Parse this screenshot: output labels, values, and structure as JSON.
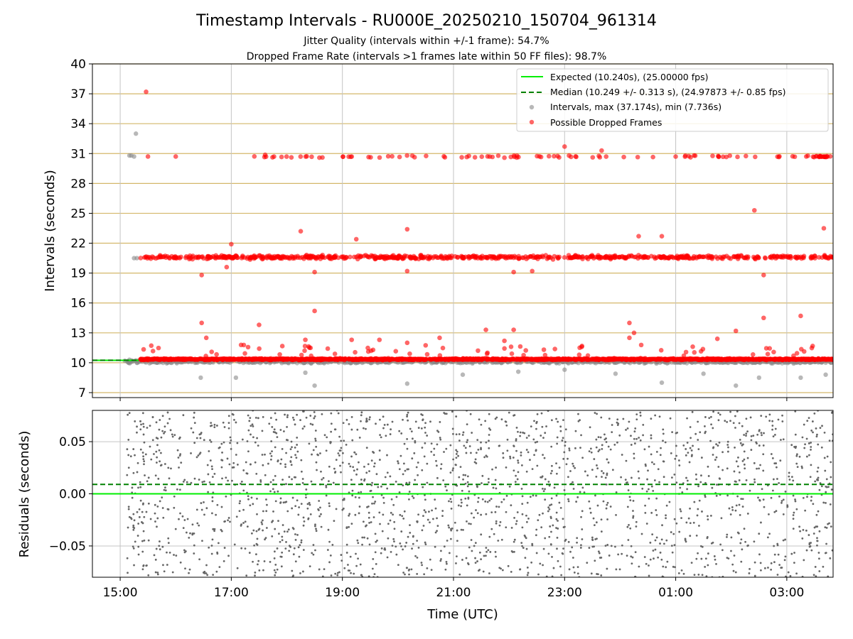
{
  "chart_data": [
    {
      "type": "scatter",
      "title": "Timestamp Intervals - RU000E_20250210_150704_961314",
      "subtitle_1": "Jitter Quality (intervals within +/-1 frame): 54.7%",
      "subtitle_2": "Dropped Frame Rate (intervals >1 frames late within 50 FF files): 98.7%",
      "ylabel": "Intervals (seconds)",
      "xlim": [
        "14:30",
        "03:50"
      ],
      "ylim": [
        6.5,
        40
      ],
      "yticks": [
        "7",
        "10",
        "13",
        "16",
        "19",
        "22",
        "25",
        "28",
        "31",
        "34",
        "37",
        "40"
      ],
      "grid": "horizontal golden lines at every y tick, vertical grey lines at every x tick",
      "legend_position": "top-right",
      "series": [
        {
          "name": "Expected (10.240s), (25.00000 fps)",
          "kind": "line",
          "style": "solid",
          "color": "#00ee00",
          "y": 10.24
        },
        {
          "name": "Median (10.249 +/- 0.313 s), (24.97873 +/- 0.85 fps)",
          "kind": "line",
          "style": "dashed",
          "color": "#008000",
          "y": 10.249
        },
        {
          "name": "Intervals, max (37.174s), min (7.736s)",
          "kind": "scatter",
          "color": "#888888",
          "max": 37.174,
          "min": 7.736,
          "points": [
            [
              "15:10",
              30.8
            ],
            [
              "15:12",
              30.8
            ],
            [
              "15:15",
              30.7
            ],
            [
              "15:17",
              33.0
            ],
            [
              "15:15",
              20.5
            ],
            [
              "15:18",
              20.5
            ],
            [
              "15:05",
              10.2
            ],
            [
              "15:10",
              10.3
            ],
            [
              "16:27",
              8.5
            ],
            [
              "17:05",
              8.5
            ],
            [
              "18:20",
              9.0
            ],
            [
              "18:30",
              7.7
            ],
            [
              "20:10",
              7.9
            ],
            [
              "21:10",
              8.8
            ],
            [
              "22:10",
              9.1
            ],
            [
              "23:00",
              9.3
            ],
            [
              "23:55",
              8.9
            ],
            [
              "00:45",
              8.0
            ],
            [
              "01:30",
              8.9
            ],
            [
              "02:05",
              7.7
            ],
            [
              "02:30",
              8.5
            ],
            [
              "03:15",
              8.5
            ],
            [
              "03:42",
              8.8
            ]
          ]
        },
        {
          "name": "Possible Dropped Frames",
          "kind": "scatter",
          "color": "#ff0000",
          "clusters_y": [
            10.4,
            20.6,
            30.7
          ],
          "points": [
            [
              "15:28",
              37.2
            ],
            [
              "15:30",
              30.7
            ],
            [
              "16:00",
              30.7
            ],
            [
              "17:00",
              21.9
            ],
            [
              "16:55",
              19.6
            ],
            [
              "16:28",
              18.8
            ],
            [
              "16:28",
              14.0
            ],
            [
              "16:33",
              12.5
            ],
            [
              "17:30",
              13.8
            ],
            [
              "18:15",
              23.2
            ],
            [
              "18:30",
              19.1
            ],
            [
              "18:30",
              15.2
            ],
            [
              "18:20",
              12.3
            ],
            [
              "19:15",
              22.4
            ],
            [
              "19:10",
              12.3
            ],
            [
              "19:40",
              12.3
            ],
            [
              "20:10",
              23.4
            ],
            [
              "20:10",
              19.2
            ],
            [
              "20:10",
              12.0
            ],
            [
              "20:45",
              12.5
            ],
            [
              "21:35",
              13.3
            ],
            [
              "21:55",
              12.2
            ],
            [
              "22:05",
              19.1
            ],
            [
              "22:05",
              13.3
            ],
            [
              "22:25",
              19.2
            ],
            [
              "23:00",
              31.7
            ],
            [
              "23:40",
              31.3
            ],
            [
              "24:10",
              14.0
            ],
            [
              "24:10",
              12.5
            ],
            [
              "24:15",
              13.0
            ],
            [
              "24:20",
              22.7
            ],
            [
              "24:45",
              22.7
            ],
            [
              "25:45",
              12.4
            ],
            [
              "26:05",
              13.2
            ],
            [
              "26:25",
              25.3
            ],
            [
              "26:35",
              18.8
            ],
            [
              "26:35",
              14.5
            ],
            [
              "27:15",
              14.7
            ],
            [
              "27:40",
              23.5
            ]
          ]
        }
      ]
    },
    {
      "type": "scatter",
      "ylabel": "Residuals (seconds)",
      "xlabel": "Time (UTC)",
      "xlim": [
        "14:30",
        "03:50"
      ],
      "ylim": [
        -0.08,
        0.08
      ],
      "yticks": [
        "−0.05",
        "0.00",
        "0.05"
      ],
      "xticks": [
        "15:00",
        "17:00",
        "19:00",
        "21:00",
        "23:00",
        "01:00",
        "03:00"
      ],
      "grid": "horizontal and vertical grey lines at ticks",
      "series": [
        {
          "kind": "line",
          "style": "solid",
          "color": "#00ee00",
          "y": 0.0
        },
        {
          "kind": "line",
          "style": "dashed",
          "color": "#008000",
          "y": 0.009
        },
        {
          "kind": "scatter",
          "color": "#666666",
          "start": "15:07",
          "end": "03:50",
          "spread": [
            -0.08,
            0.08
          ]
        }
      ]
    }
  ]
}
